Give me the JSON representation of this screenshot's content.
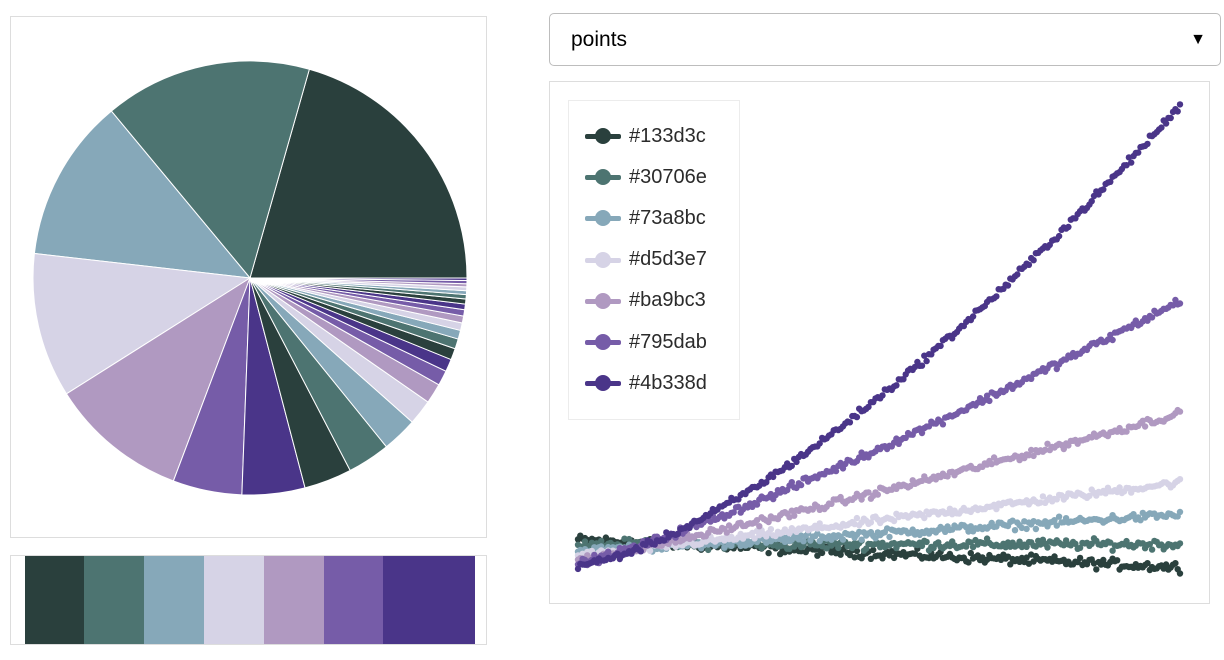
{
  "palette": [
    "#2a403d",
    "#4d7471",
    "#86a8b9",
    "#d6d3e6",
    "#b099c1",
    "#765ca8",
    "#4a3589"
  ],
  "select": {
    "value": "points",
    "options": [
      "points"
    ]
  },
  "chart_data": [
    {
      "type": "pie",
      "title": "",
      "values": [
        22.0,
        16.5,
        13.0,
        11.5,
        11.0,
        5.5,
        5.0,
        3.8,
        3.4,
        2.8,
        2.0,
        1.6,
        1.2,
        1.0,
        0.9,
        0.8,
        0.7,
        0.6,
        0.55,
        0.5,
        0.45,
        0.4,
        0.35,
        0.3,
        0.3,
        0.25,
        0.25,
        0.2
      ],
      "colors": [
        "#2a403d",
        "#4d7471",
        "#86a8b9",
        "#d6d3e6",
        "#b099c1",
        "#765ca8",
        "#4a3589",
        "#2a403d",
        "#4d7471",
        "#86a8b9",
        "#d6d3e6",
        "#b099c1",
        "#765ca8",
        "#4a3589",
        "#2a403d",
        "#4d7471",
        "#86a8b9",
        "#d6d3e6",
        "#b099c1",
        "#765ca8",
        "#4a3589",
        "#2a403d",
        "#4d7471",
        "#86a8b9",
        "#d6d3e6",
        "#b099c1",
        "#765ca8",
        "#4a3589"
      ]
    },
    {
      "type": "scatter",
      "title": "",
      "xlabel": "",
      "ylabel": "",
      "xlim": [
        0,
        1
      ],
      "ylim": [
        0,
        1
      ],
      "grid": false,
      "legend_position": "top-left",
      "series": [
        {
          "name": "#133d3c",
          "color": "#2a403d",
          "start": 0.055,
          "end": -0.005,
          "curve": 1.0,
          "noise": 0.016
        },
        {
          "name": "#30706e",
          "color": "#4d7471",
          "start": 0.045,
          "end": 0.045,
          "curve": 1.0,
          "noise": 0.016
        },
        {
          "name": "#73a8bc",
          "color": "#86a8b9",
          "start": 0.03,
          "end": 0.11,
          "curve": 1.05,
          "noise": 0.014
        },
        {
          "name": "#d5d3e7",
          "color": "#d6d3e6",
          "start": 0.02,
          "end": 0.18,
          "curve": 1.05,
          "noise": 0.013
        },
        {
          "name": "#ba9bc3",
          "color": "#b099c1",
          "start": 0.01,
          "end": 0.33,
          "curve": 1.1,
          "noise": 0.013
        },
        {
          "name": "#795dab",
          "color": "#765ca8",
          "start": 0.005,
          "end": 0.575,
          "curve": 1.2,
          "noise": 0.013
        },
        {
          "name": "#4b338d",
          "color": "#4a3589",
          "start": 0.0,
          "end": 1.0,
          "curve": 1.45,
          "noise": 0.012
        }
      ]
    }
  ]
}
